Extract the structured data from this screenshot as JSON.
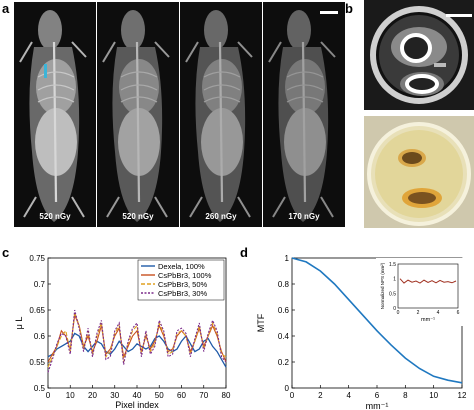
{
  "panels": {
    "a": {
      "letter": "a",
      "images": [
        {
          "dose": "520 nGy",
          "brightness": 1.0
        },
        {
          "dose": "520 nGy",
          "brightness": 0.85
        },
        {
          "dose": "260 nGy",
          "brightness": 0.8
        },
        {
          "dose": "170 nGy",
          "brightness": 0.75
        }
      ]
    },
    "b": {
      "letter": "b"
    },
    "c": {
      "letter": "c"
    },
    "d": {
      "letter": "d"
    }
  },
  "colors": {
    "dexela": "#1f5aa8",
    "cspbbr3_100": "#c8501e",
    "cspbbr3_50": "#e0a020",
    "cspbbr3_30": "#7a2a8a",
    "mtf": "#1f78c0",
    "nps": "#a03020",
    "marker": "#3bb4d8"
  },
  "chart_data": [
    {
      "type": "line",
      "title": "",
      "xlabel": "Pixel index",
      "ylabel": "μ L",
      "xlim": [
        0,
        80
      ],
      "ylim": [
        0.5,
        0.75
      ],
      "xticks": [
        "0",
        "10",
        "20",
        "30",
        "40",
        "50",
        "60",
        "70",
        "80"
      ],
      "yticks": [
        "0.5",
        "0.55",
        "0.6",
        "0.65",
        "0.7",
        "0.75"
      ],
      "legend_position": "top-right",
      "x": [
        0,
        2,
        4,
        6,
        8,
        10,
        12,
        14,
        16,
        18,
        20,
        22,
        24,
        26,
        28,
        30,
        32,
        34,
        36,
        38,
        40,
        42,
        44,
        46,
        48,
        50,
        52,
        54,
        56,
        58,
        60,
        62,
        64,
        66,
        68,
        70,
        72,
        74,
        76,
        78,
        80
      ],
      "series": [
        {
          "name": "Dexela, 100%",
          "values": [
            0.56,
            0.565,
            0.575,
            0.58,
            0.585,
            0.59,
            0.605,
            0.6,
            0.58,
            0.57,
            0.58,
            0.59,
            0.585,
            0.57,
            0.565,
            0.575,
            0.59,
            0.58,
            0.57,
            0.575,
            0.585,
            0.58,
            0.575,
            0.58,
            0.595,
            0.6,
            0.59,
            0.575,
            0.57,
            0.575,
            0.59,
            0.6,
            0.585,
            0.57,
            0.575,
            0.59,
            0.595,
            0.58,
            0.57,
            0.555,
            0.54
          ]
        },
        {
          "name": "CsPbBr3, 100%",
          "values": [
            0.55,
            0.565,
            0.58,
            0.61,
            0.6,
            0.575,
            0.64,
            0.62,
            0.58,
            0.6,
            0.57,
            0.59,
            0.62,
            0.565,
            0.575,
            0.6,
            0.615,
            0.56,
            0.58,
            0.6,
            0.61,
            0.57,
            0.6,
            0.575,
            0.59,
            0.62,
            0.6,
            0.57,
            0.575,
            0.6,
            0.61,
            0.6,
            0.57,
            0.59,
            0.615,
            0.58,
            0.6,
            0.62,
            0.6,
            0.57,
            0.55
          ]
        },
        {
          "name": "CsPbBr3, 50%",
          "values": [
            0.54,
            0.56,
            0.58,
            0.6,
            0.61,
            0.57,
            0.645,
            0.62,
            0.575,
            0.61,
            0.565,
            0.6,
            0.625,
            0.56,
            0.57,
            0.605,
            0.62,
            0.55,
            0.585,
            0.61,
            0.62,
            0.565,
            0.605,
            0.57,
            0.585,
            0.625,
            0.605,
            0.565,
            0.57,
            0.605,
            0.61,
            0.6,
            0.565,
            0.59,
            0.62,
            0.575,
            0.6,
            0.625,
            0.605,
            0.565,
            0.56
          ]
        },
        {
          "name": "CsPbBr3, 30%",
          "values": [
            0.53,
            0.555,
            0.585,
            0.605,
            0.6,
            0.565,
            0.65,
            0.615,
            0.57,
            0.615,
            0.56,
            0.605,
            0.63,
            0.555,
            0.56,
            0.61,
            0.625,
            0.545,
            0.59,
            0.615,
            0.625,
            0.56,
            0.61,
            0.565,
            0.58,
            0.63,
            0.61,
            0.56,
            0.565,
            0.61,
            0.615,
            0.605,
            0.56,
            0.595,
            0.625,
            0.57,
            0.605,
            0.63,
            0.61,
            0.56,
            0.55
          ]
        }
      ]
    },
    {
      "type": "line",
      "title": "",
      "xlabel": "mm⁻¹",
      "ylabel": "MTF",
      "xlim": [
        0,
        12
      ],
      "ylim": [
        0,
        1
      ],
      "xticks": [
        "0",
        "2",
        "4",
        "6",
        "8",
        "10",
        "12"
      ],
      "yticks": [
        "0",
        "0.2",
        "0.4",
        "0.6",
        "0.8",
        "1"
      ],
      "x": [
        0,
        1,
        2,
        3,
        4,
        5,
        6,
        7,
        8,
        9,
        10,
        11,
        12
      ],
      "series": [
        {
          "name": "",
          "values": [
            1.0,
            0.97,
            0.9,
            0.8,
            0.68,
            0.56,
            0.44,
            0.33,
            0.23,
            0.15,
            0.09,
            0.06,
            0.04
          ]
        }
      ],
      "inset": {
        "type": "line",
        "ylabel": "Normalized NPS (mm²)",
        "xlabel": "mm⁻¹",
        "xlim": [
          0,
          6
        ],
        "ylim": [
          0,
          1.5
        ],
        "xticks": [
          "0",
          "2",
          "4",
          "6"
        ],
        "yticks": [
          "0",
          "0.5",
          "1",
          "1.5"
        ],
        "x": [
          0.2,
          0.6,
          1.0,
          1.4,
          1.8,
          2.2,
          2.6,
          3.0,
          3.4,
          3.8,
          4.2,
          4.6,
          5.0,
          5.4,
          5.8
        ],
        "values": [
          1.0,
          0.85,
          0.95,
          0.88,
          0.92,
          0.85,
          0.95,
          0.87,
          0.93,
          0.86,
          0.94,
          0.88,
          0.9,
          0.86,
          0.92
        ]
      }
    }
  ]
}
